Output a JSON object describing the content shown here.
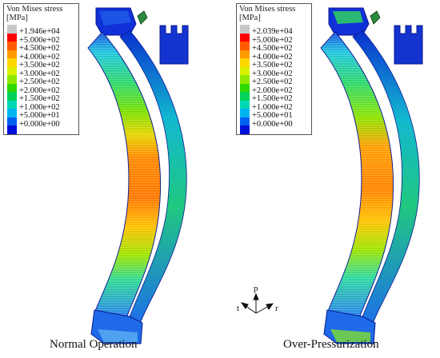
{
  "legends": [
    {
      "title": "Von Mises stress\n[MPa]",
      "colors": [
        "#c8c8c8",
        "#ff0000",
        "#ff5a00",
        "#ff9a00",
        "#ffd700",
        "#d8f000",
        "#8ee800",
        "#2ed800",
        "#00d25a",
        "#00d8b4",
        "#00b4f0",
        "#0060f0",
        "#0010d8"
      ],
      "labels": [
        "+1.946e+04",
        "+5.000e+02",
        "+4.500e+02",
        "+4.000e+02",
        "+3.500e+02",
        "+3.000e+02",
        "+2.500e+02",
        "+2.000e+02",
        "+1.500e+02",
        "+1.000e+02",
        "+5.000e+01",
        "+0.000e+00"
      ]
    },
    {
      "title": "Von Mises stress\n[MPa]",
      "colors": [
        "#c8c8c8",
        "#ff0000",
        "#ff5a00",
        "#ff9a00",
        "#ffd700",
        "#d8f000",
        "#8ee800",
        "#2ed800",
        "#00d25a",
        "#00d8b4",
        "#00b4f0",
        "#0060f0",
        "#0010d8"
      ],
      "labels": [
        "+2.039e+04",
        "+5.000e+02",
        "+4.500e+02",
        "+4.000e+02",
        "+3.500e+02",
        "+3.000e+02",
        "+2.500e+02",
        "+2.000e+02",
        "+1.500e+02",
        "+1.000e+02",
        "+5.000e+01",
        "+0.000e+00"
      ]
    }
  ],
  "captions": {
    "left": "Normal Operation",
    "right": "Over-Pressurization"
  },
  "triad": {
    "p": "p",
    "t": "t",
    "r": "r"
  }
}
